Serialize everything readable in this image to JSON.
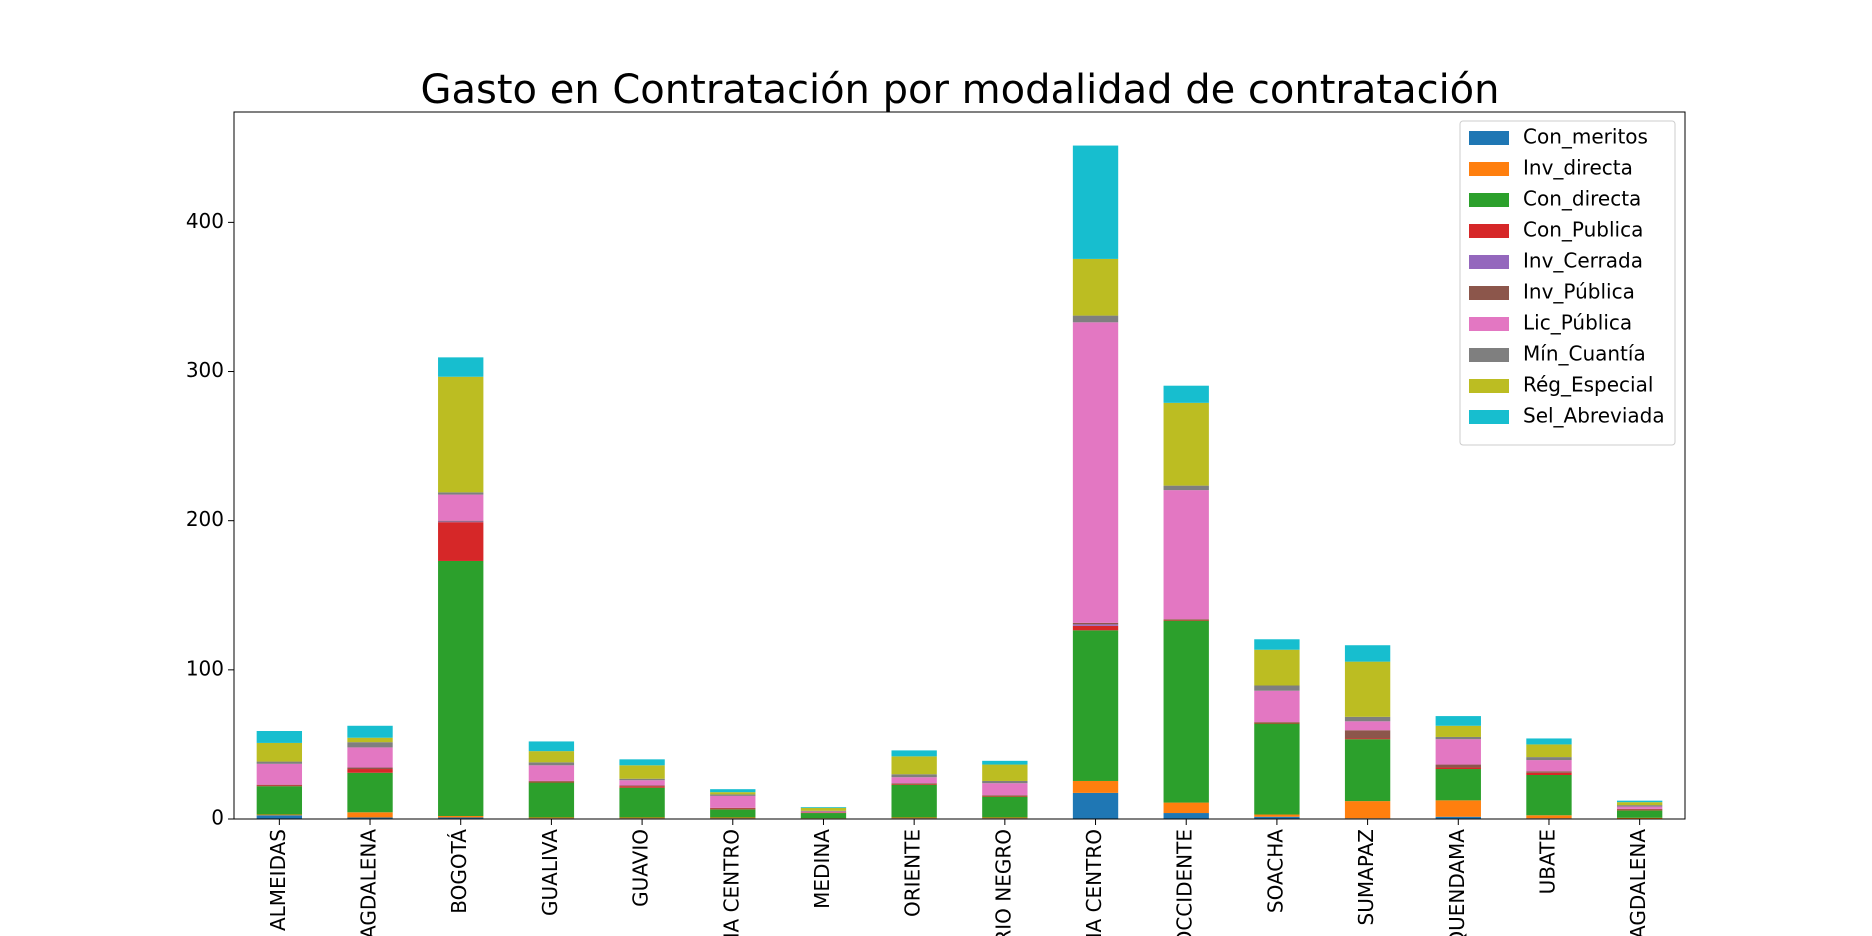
{
  "chart_data": {
    "type": "stacked_bar",
    "title": "Gasto en Contratación por modalidad de contratación",
    "categories": [
      "ALMEIDAS",
      "AGDALENA",
      "BOGOTÁ",
      "GUALIVA",
      "GUAVIO",
      "NA CENTRO",
      "MEDINA",
      "ORIENTE",
      "RIO NEGRO",
      "NA CENTRO",
      "OCCIDENTE",
      "SOACHA",
      "SUMAPAZ",
      "QUENDAMA",
      "UBATE",
      "AGDALENA"
    ],
    "series": [
      {
        "name": "Con_meritos",
        "color": "#1f77b4",
        "values": [
          2.5,
          1,
          1,
          0.5,
          0.5,
          0.5,
          0.3,
          0.5,
          0.5,
          17.5,
          4,
          1.5,
          0.5,
          1.5,
          0.5,
          0.3
        ]
      },
      {
        "name": "Inv_directa",
        "color": "#ff7f0e",
        "values": [
          0.5,
          3.5,
          1,
          0.5,
          0.5,
          0.5,
          0.2,
          0.5,
          0.5,
          8,
          7,
          1.5,
          11.5,
          11,
          2,
          0.5
        ]
      },
      {
        "name": "Con_directa",
        "color": "#2ca02c",
        "values": [
          19,
          26.5,
          171,
          23.5,
          20,
          5.5,
          3.5,
          22,
          14,
          101,
          122,
          61,
          41.5,
          21,
          27,
          5
        ]
      },
      {
        "name": "Con_Publica",
        "color": "#d62728",
        "values": [
          0.5,
          2.5,
          26,
          0.5,
          1,
          0.5,
          0.3,
          0.5,
          0.5,
          3,
          0.5,
          0.5,
          0.5,
          1,
          1.5,
          0.5
        ]
      },
      {
        "name": "Inv_Cerrada",
        "color": "#9467bd",
        "values": [
          0,
          0,
          0.5,
          0,
          0,
          0,
          0,
          0,
          0,
          1,
          0,
          0,
          0,
          0,
          0,
          0
        ]
      },
      {
        "name": "Inv_Pública",
        "color": "#8c564b",
        "values": [
          0.5,
          1,
          0.5,
          0.5,
          0.5,
          0.5,
          0.2,
          0.5,
          0.5,
          1,
          0.5,
          0.5,
          5.5,
          2,
          1,
          0.5
        ]
      },
      {
        "name": "Lic_Pública",
        "color": "#e377c2",
        "values": [
          14,
          13.5,
          17.5,
          10.5,
          3.5,
          8,
          0.5,
          4,
          8,
          201.5,
          86.5,
          21,
          6,
          17,
          7.5,
          1.5
        ]
      },
      {
        "name": "Mín_Cuantía",
        "color": "#7f7f7f",
        "values": [
          1.5,
          3.5,
          1.5,
          2,
          1,
          1,
          0.5,
          2,
          1.5,
          4.5,
          3,
          3.5,
          3,
          1.5,
          2,
          1
        ]
      },
      {
        "name": "Rég_Especial",
        "color": "#bcbd22",
        "values": [
          12.5,
          3,
          77.5,
          7.5,
          9,
          1.5,
          2,
          12,
          11,
          38,
          55.5,
          24,
          37,
          7.5,
          8.5,
          2
        ]
      },
      {
        "name": "Sel_Abreviada",
        "color": "#17becf",
        "values": [
          8,
          8,
          13,
          6.5,
          4,
          2,
          0.5,
          4,
          2.5,
          76,
          11.5,
          7,
          11,
          6.5,
          4,
          1
        ]
      }
    ],
    "ylim": [
      0,
      474
    ],
    "yticks": [
      0,
      100,
      200,
      300,
      400
    ],
    "legend": "upper right"
  }
}
